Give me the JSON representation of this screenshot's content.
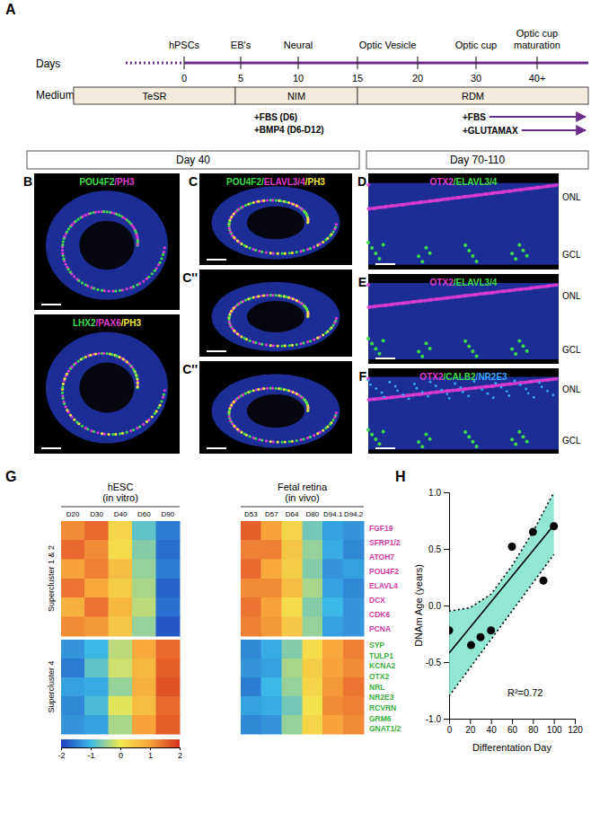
{
  "chart_data": {
    "type": "scatter",
    "x_label": "Differentation Day",
    "y_label": "DNAm Age (years)",
    "x": [
      0,
      21,
      30,
      40,
      60,
      80,
      90,
      100
    ],
    "values": [
      -0.22,
      -0.35,
      -0.28,
      -0.22,
      0.52,
      0.65,
      0.22,
      0.7
    ],
    "xlim": [
      0,
      120
    ],
    "xticks": [
      0,
      20,
      40,
      60,
      80,
      100,
      120
    ],
    "ylim": [
      -1,
      1
    ],
    "yticks": [
      {
        "value": -1,
        "label": "-1.0"
      },
      {
        "value": -0.5,
        "label": "-0.5"
      },
      {
        "value": 0,
        "label": "0.0"
      },
      {
        "value": 0.5,
        "label": "0.5"
      },
      {
        "value": 1,
        "label": "1.0"
      }
    ],
    "annotation": "R²=0.72",
    "fit": {
      "x": [
        0,
        100
      ],
      "y": [
        -0.42,
        0.71
      ]
    },
    "band": {
      "x": [
        0,
        20,
        40,
        60,
        80,
        100
      ],
      "upper": [
        -0.05,
        -0.02,
        0.1,
        0.35,
        0.65,
        1.0
      ],
      "lower": [
        -0.8,
        -0.55,
        -0.3,
        -0.05,
        0.2,
        0.45
      ],
      "color": "#7fe3cb"
    },
    "color": "#000000",
    "marker": "circle"
  },
  "figure": {
    "panel_letters": [
      "A",
      "G",
      "H"
    ],
    "timeline": {
      "axis_label": "Days",
      "ticks": [
        "0",
        "5",
        "10",
        "15",
        "20",
        "30",
        "40+"
      ],
      "stages": [
        [
          "hPSCs"
        ],
        [
          "EB's"
        ],
        [
          "Neural"
        ],
        [
          "Optic Vesicle"
        ],
        [
          "Optic cup"
        ],
        [
          "Optic cup",
          "maturation"
        ]
      ],
      "medium_label": "Medium",
      "media": [
        "TeSR",
        "NIM",
        "RDM"
      ],
      "nim_additions": [
        "+FBS  (D6)",
        "+BMP4 (D6-D12)"
      ],
      "rdm_additions": [
        "+FBS",
        "+GLUTAMAX"
      ],
      "color": "#6b2d8c"
    },
    "day_headers": [
      "Day 40",
      "Day 70-110"
    ],
    "layer_labels": [
      "ONL",
      "GCL"
    ],
    "images": [
      {
        "letter": "B",
        "stains": [
          {
            "text": "POU4F2",
            "color": "#3fdc4a"
          },
          {
            "text": "/PH3",
            "color": "#e03cd2"
          }
        ]
      },
      {
        "stains": [
          {
            "text": "LHX2",
            "color": "#3fdc4a"
          },
          {
            "text": "/PAX6",
            "color": "#e03cd2"
          },
          {
            "text": "/PH3",
            "color": "#f2e640"
          }
        ]
      },
      {
        "letter": "C",
        "stains": [
          {
            "text": "POU4F2/",
            "color": "#3fdc4a"
          },
          {
            "text": "ELAVL3/4",
            "color": "#e03cd2"
          },
          {
            "text": "/PH3",
            "color": "#f2e640"
          }
        ]
      },
      {
        "letter": "C''",
        "stains": []
      },
      {
        "letter": "C''",
        "stains": []
      },
      {
        "letter": "D",
        "stains": [
          {
            "text": "OTX2",
            "color": "#e03cd2"
          },
          {
            "text": "/ELAVL3/4",
            "color": "#3fdc4a"
          }
        ]
      },
      {
        "letter": "E",
        "stains": [
          {
            "text": "OTX2",
            "color": "#e03cd2"
          },
          {
            "text": "/ELAVL3/4",
            "color": "#3fdc4a"
          }
        ]
      },
      {
        "letter": "F",
        "stains": [
          {
            "text": "OTX2",
            "color": "#e03cd2"
          },
          {
            "text": "/CALB2",
            "color": "#3fdc4a"
          },
          {
            "text": "/NR2E3",
            "color": "#3aa8ff"
          }
        ]
      }
    ],
    "heatmap": {
      "hesc_title": [
        "hESC",
        "(in vitro)"
      ],
      "fetal_title": [
        "Fetal retina",
        "(in vivo)"
      ],
      "columns_hesc": [
        "D20",
        "D30",
        "D40",
        "D60",
        "D90"
      ],
      "columns_fetal": [
        "D53",
        "D57",
        "D64",
        "D80",
        "D94.1",
        "D94.2"
      ],
      "superclusters": [
        {
          "label": "Supercluster 1 & 2",
          "color": "#d63aa8",
          "genes": [
            "FGF19",
            "SFRP1/2",
            "ATOH7",
            "POU4F2",
            "ELAVL4",
            "DCX",
            "CDK6",
            "PCNA"
          ],
          "hesc": [
            [
              1.2,
              1.5,
              0.3,
              -0.8,
              -1.5
            ],
            [
              1.5,
              1.2,
              0.2,
              -0.6,
              -1.6
            ],
            [
              1.0,
              1.3,
              0.6,
              -0.5,
              -1.5
            ],
            [
              1.4,
              0.9,
              0.4,
              -0.4,
              -1.7
            ],
            [
              0.8,
              1.4,
              0.7,
              -0.3,
              -1.6
            ],
            [
              1.2,
              1.1,
              0.5,
              -0.5,
              -1.8
            ]
          ],
          "fetal": [
            [
              1.6,
              1.0,
              0.3,
              -0.7,
              -1.2,
              -1.3
            ],
            [
              1.3,
              1.3,
              0.5,
              -0.5,
              -1.1,
              -1.4
            ],
            [
              1.5,
              0.9,
              0.4,
              -0.6,
              -1.3,
              -1.2
            ],
            [
              1.2,
              1.2,
              0.6,
              -0.4,
              -1.2,
              -1.4
            ],
            [
              1.4,
              1.0,
              0.2,
              -0.6,
              -1.0,
              -1.3
            ],
            [
              1.3,
              1.1,
              0.5,
              -0.5,
              -1.2,
              -1.3
            ]
          ]
        },
        {
          "label": "Supercluster 4",
          "color": "#3cae3c",
          "genes": [
            "SYP",
            "TULP1",
            "KCNA2",
            "OTX2",
            "NRL",
            "NR2E3",
            "RCVRN",
            "GRM6",
            "GNAT1/2"
          ],
          "hesc": [
            [
              -1.3,
              -1.0,
              -0.3,
              0.9,
              1.5
            ],
            [
              -1.5,
              -0.8,
              -0.2,
              0.7,
              1.6
            ],
            [
              -1.2,
              -1.1,
              -0.5,
              0.8,
              1.7
            ],
            [
              -1.4,
              -0.9,
              -0.1,
              0.6,
              1.5
            ],
            [
              -1.3,
              -1.2,
              -0.4,
              1.0,
              1.6
            ]
          ],
          "fetal": [
            [
              -1.4,
              -1.1,
              -0.6,
              0.2,
              0.9,
              1.3
            ],
            [
              -1.3,
              -1.2,
              -0.4,
              0.4,
              1.0,
              1.2
            ],
            [
              -1.5,
              -1.0,
              -0.5,
              0.3,
              1.1,
              1.4
            ],
            [
              -1.2,
              -1.1,
              -0.7,
              0.1,
              1.2,
              1.3
            ],
            [
              -1.4,
              -1.3,
              -0.5,
              0.3,
              1.0,
              1.2
            ]
          ]
        }
      ],
      "colorbar": {
        "range": [
          -2,
          2
        ],
        "ticks": [
          -2,
          -1,
          0,
          1,
          2
        ],
        "colors": [
          "#1f3fbf",
          "#3bb8e6",
          "#f2e94e",
          "#f7a23b",
          "#d7301f"
        ]
      }
    }
  }
}
